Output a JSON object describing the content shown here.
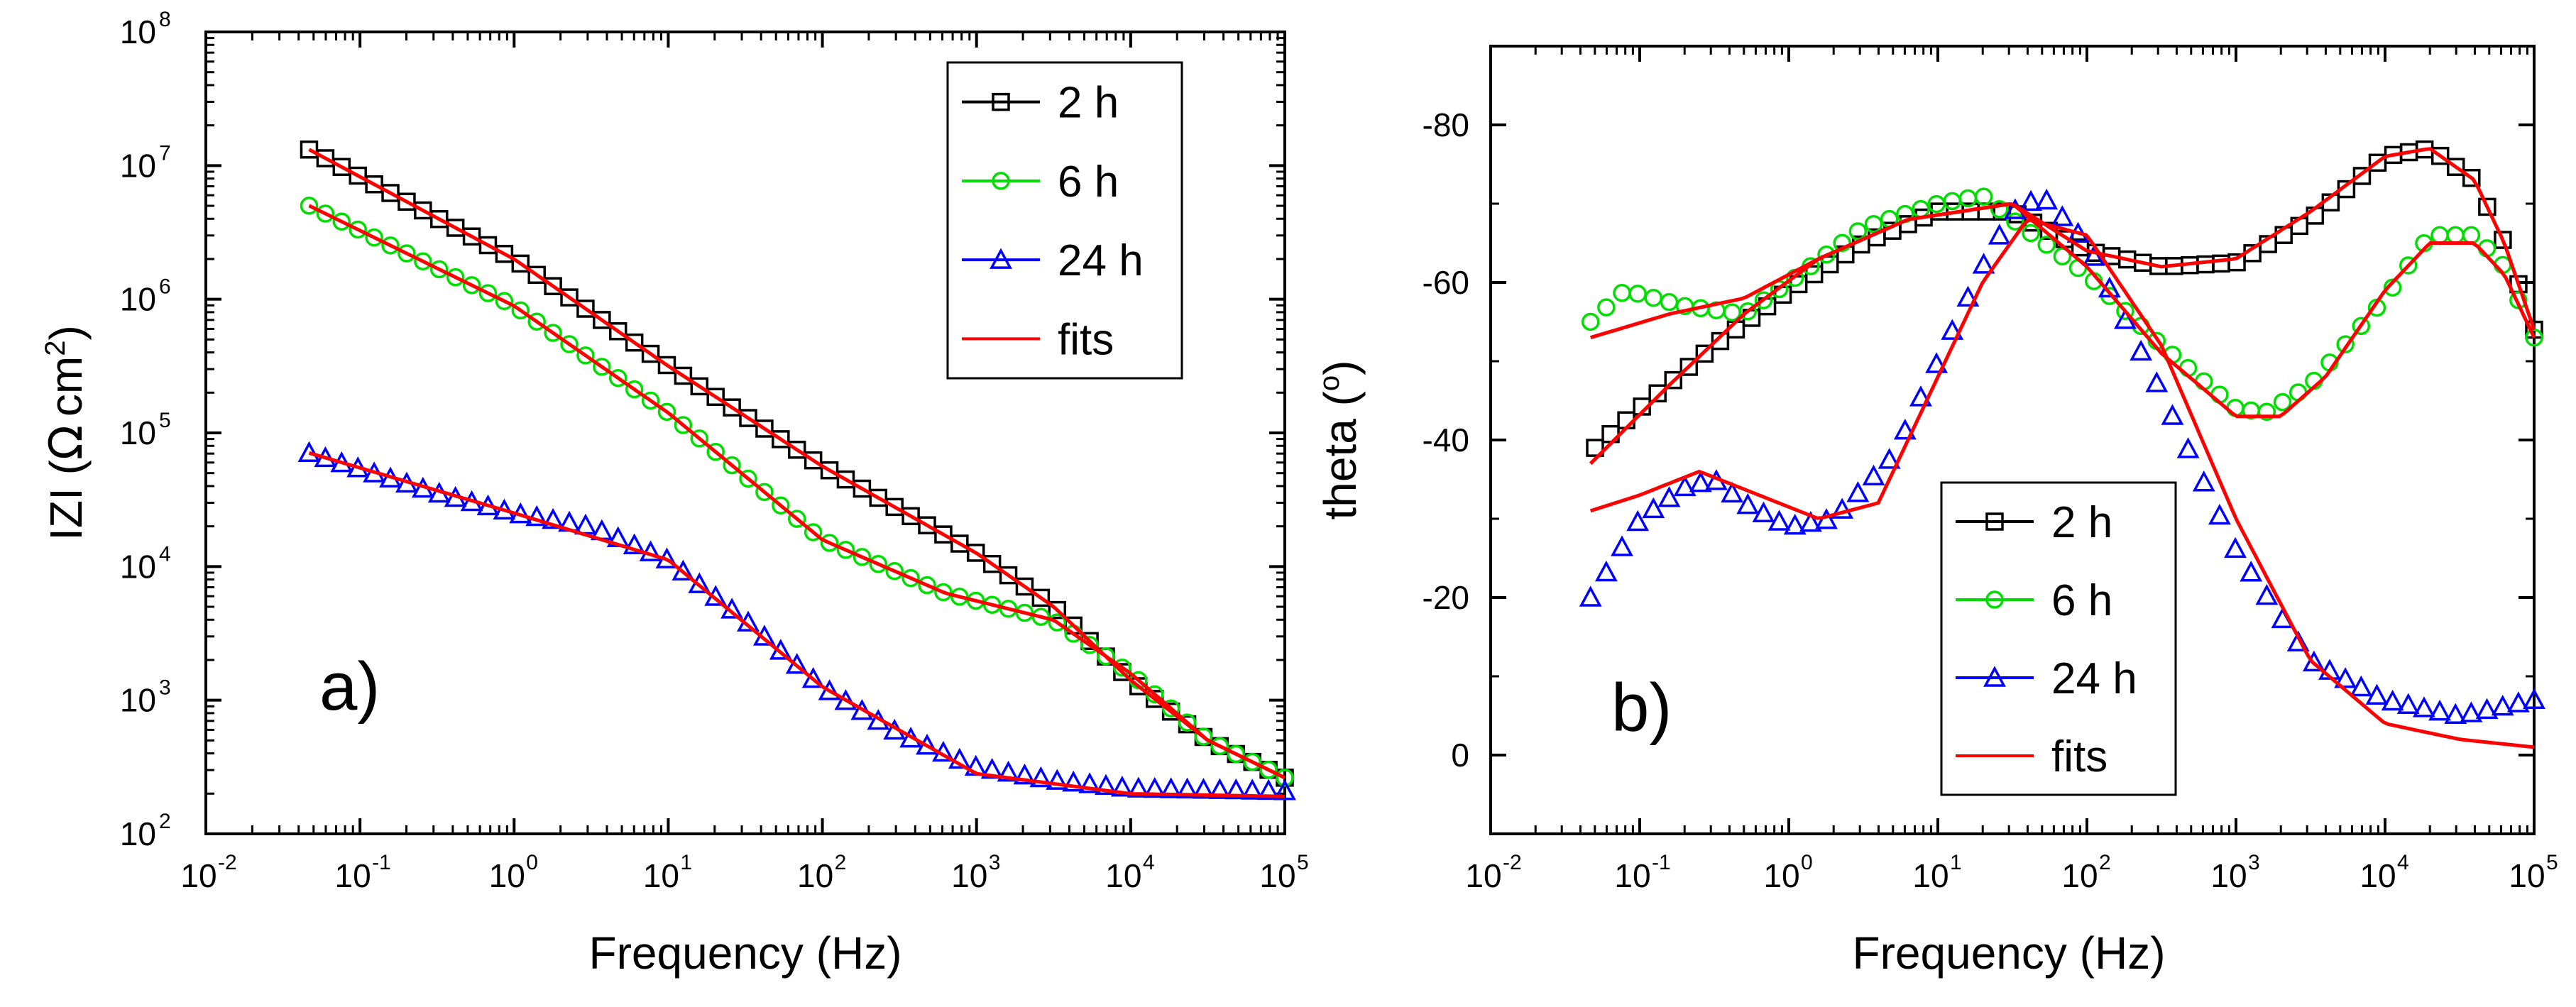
{
  "chart_data": [
    {
      "type": "scatter",
      "panel_label": "a)",
      "xlabel": "Frequency (Hz)",
      "ylabel_main": "IZI (",
      "ylabel_omega": "Ω",
      "ylabel_unit": "cm",
      "ylabel_exp": "2",
      "ylabel_close": ")",
      "xscale": "log",
      "yscale": "log",
      "xlim_exp": [
        -2,
        5
      ],
      "ylim_exp": [
        2,
        8
      ],
      "xticks": [
        {
          "base": "10",
          "exp": "-2",
          "e": -2
        },
        {
          "base": "10",
          "exp": "-1",
          "e": -1
        },
        {
          "base": "10",
          "exp": "0",
          "e": 0
        },
        {
          "base": "10",
          "exp": "1",
          "e": 1
        },
        {
          "base": "10",
          "exp": "2",
          "e": 2
        },
        {
          "base": "10",
          "exp": "3",
          "e": 3
        },
        {
          "base": "10",
          "exp": "4",
          "e": 4
        },
        {
          "base": "10",
          "exp": "5",
          "e": 5
        }
      ],
      "yticks": [
        {
          "base": "10",
          "exp": "2",
          "e": 2
        },
        {
          "base": "10",
          "exp": "3",
          "e": 3
        },
        {
          "base": "10",
          "exp": "4",
          "e": 4
        },
        {
          "base": "10",
          "exp": "5",
          "e": 5
        },
        {
          "base": "10",
          "exp": "6",
          "e": 6
        },
        {
          "base": "10",
          "exp": "7",
          "e": 7
        },
        {
          "base": "10",
          "exp": "8",
          "e": 8
        }
      ],
      "legend_position": "top-right",
      "series": [
        {
          "name": "2 h",
          "color": "#000000",
          "marker": "square",
          "points": [
            [
              -1.33,
              7.12
            ],
            [
              0,
              6.3
            ],
            [
              1,
              5.5
            ],
            [
              2,
              4.75
            ],
            [
              3,
              4.1
            ],
            [
              3.5,
              3.7
            ],
            [
              4,
              3.15
            ],
            [
              4.5,
              2.7
            ],
            [
              5,
              2.42
            ]
          ]
        },
        {
          "name": "6 h",
          "color": "#00dd00",
          "marker": "circle",
          "points": [
            [
              -1.33,
              6.7
            ],
            [
              0,
              5.95
            ],
            [
              1,
              5.15
            ],
            [
              2,
              4.2
            ],
            [
              2.8,
              3.8
            ],
            [
              3.5,
              3.6
            ],
            [
              4,
              3.2
            ],
            [
              4.5,
              2.7
            ],
            [
              5,
              2.42
            ]
          ]
        },
        {
          "name": "24 h",
          "color": "#0000ff",
          "marker": "triangle",
          "points": [
            [
              -1.33,
              4.85
            ],
            [
              -0.5,
              4.55
            ],
            [
              0,
              4.4
            ],
            [
              0.5,
              4.3
            ],
            [
              1,
              4.05
            ],
            [
              1.5,
              3.6
            ],
            [
              2,
              3.1
            ],
            [
              2.5,
              2.75
            ],
            [
              3,
              2.5
            ],
            [
              3.5,
              2.4
            ],
            [
              4,
              2.34
            ],
            [
              5,
              2.32
            ]
          ]
        },
        {
          "name": "fits",
          "color": "#ff0000",
          "marker": "line",
          "points": [
            [
              -1.33,
              4.85
            ],
            [
              0,
              4.4
            ],
            [
              1,
              4.05
            ],
            [
              2,
              3.1
            ],
            [
              3,
              2.45
            ],
            [
              4,
              2.3
            ],
            [
              5,
              2.28
            ]
          ]
        }
      ],
      "fit_curves": [
        [
          [
            -1.33,
            7.12
          ],
          [
            0,
            6.3
          ],
          [
            1,
            5.5
          ],
          [
            2,
            4.75
          ],
          [
            3,
            4.1
          ],
          [
            3.5,
            3.7
          ],
          [
            4,
            3.15
          ],
          [
            4.5,
            2.7
          ],
          [
            5,
            2.42
          ]
        ],
        [
          [
            -1.33,
            6.7
          ],
          [
            0,
            5.95
          ],
          [
            1,
            5.15
          ],
          [
            2,
            4.2
          ],
          [
            2.8,
            3.8
          ],
          [
            3.5,
            3.6
          ],
          [
            4,
            3.2
          ],
          [
            4.5,
            2.7
          ],
          [
            5,
            2.42
          ]
        ]
      ],
      "legend": [
        "2 h",
        "6 h",
        "24 h",
        "fits"
      ]
    },
    {
      "type": "scatter",
      "panel_label": "b)",
      "xlabel": "Frequency (Hz)",
      "ylabel_main": "theta (",
      "ylabel_deg": "o",
      "ylabel_close": ")",
      "xscale": "log",
      "yscale": "linear",
      "xlim_exp": [
        -2,
        5
      ],
      "ylim": [
        10,
        -90
      ],
      "xticks": [
        {
          "base": "10",
          "exp": "-2",
          "e": -2
        },
        {
          "base": "10",
          "exp": "-1",
          "e": -1
        },
        {
          "base": "10",
          "exp": "0",
          "e": 0
        },
        {
          "base": "10",
          "exp": "1",
          "e": 1
        },
        {
          "base": "10",
          "exp": "2",
          "e": 2
        },
        {
          "base": "10",
          "exp": "3",
          "e": 3
        },
        {
          "base": "10",
          "exp": "4",
          "e": 4
        },
        {
          "base": "10",
          "exp": "5",
          "e": 5
        }
      ],
      "yticks": [
        {
          "label": "-80",
          "v": -80
        },
        {
          "label": "-60",
          "v": -60
        },
        {
          "label": "-40",
          "v": -40
        },
        {
          "label": "-20",
          "v": -20
        },
        {
          "label": "0",
          "v": 0
        }
      ],
      "legend_position": "bottom-right",
      "series": [
        {
          "name": "2 h",
          "color": "#000000",
          "marker": "square",
          "points": [
            [
              -1.3,
              -39
            ],
            [
              -1,
              -44
            ],
            [
              -0.5,
              -52
            ],
            [
              0,
              -59
            ],
            [
              0.5,
              -65
            ],
            [
              1,
              -69
            ],
            [
              1.5,
              -69
            ],
            [
              2,
              -64
            ],
            [
              2.5,
              -62
            ],
            [
              3,
              -62.5
            ],
            [
              3.5,
              -68
            ],
            [
              4,
              -76
            ],
            [
              4.3,
              -77
            ],
            [
              4.6,
              -73
            ],
            [
              4.8,
              -65
            ],
            [
              5,
              -54
            ]
          ]
        },
        {
          "name": "6 h",
          "color": "#00dd00",
          "marker": "circle",
          "points": [
            [
              -1.33,
              -55
            ],
            [
              -1.1,
              -59
            ],
            [
              -0.7,
              -57
            ],
            [
              -0.3,
              -56
            ],
            [
              0,
              -60
            ],
            [
              0.5,
              -67
            ],
            [
              1,
              -70
            ],
            [
              1.3,
              -71
            ],
            [
              1.5,
              -68
            ],
            [
              2,
              -61
            ],
            [
              2.5,
              -52
            ],
            [
              3,
              -44
            ],
            [
              3.2,
              -43.5
            ],
            [
              3.5,
              -47
            ],
            [
              4,
              -58
            ],
            [
              4.3,
              -66
            ],
            [
              4.6,
              -66
            ],
            [
              4.8,
              -62
            ],
            [
              5,
              -53
            ]
          ]
        },
        {
          "name": "24 h",
          "color": "#0000ff",
          "marker": "triangle",
          "points": [
            [
              -1.33,
              -20
            ],
            [
              -1,
              -30
            ],
            [
              -0.7,
              -34
            ],
            [
              -0.5,
              -35
            ],
            [
              -0.3,
              -32
            ],
            [
              0,
              -29
            ],
            [
              0.3,
              -30
            ],
            [
              0.7,
              -38
            ],
            [
              1,
              -50
            ],
            [
              1.3,
              -62
            ],
            [
              1.5,
              -69
            ],
            [
              1.7,
              -71
            ],
            [
              2,
              -65
            ],
            [
              2.5,
              -46
            ],
            [
              3,
              -26
            ],
            [
              3.5,
              -12
            ],
            [
              4,
              -7
            ],
            [
              4.5,
              -5
            ],
            [
              5,
              -7
            ]
          ]
        },
        {
          "name": "fits",
          "color": "#ff0000",
          "marker": "line",
          "points": [
            [
              -1.33,
              -31
            ],
            [
              -1,
              -33
            ],
            [
              -0.6,
              -36
            ],
            [
              -0.2,
              -33
            ],
            [
              0.2,
              -30
            ],
            [
              0.6,
              -32
            ],
            [
              1,
              -48
            ],
            [
              1.3,
              -60
            ],
            [
              1.6,
              -68
            ],
            [
              2,
              -66
            ],
            [
              2.5,
              -52
            ],
            [
              3,
              -30
            ],
            [
              3.5,
              -12
            ],
            [
              4,
              -4
            ],
            [
              4.5,
              -2
            ],
            [
              5,
              -1
            ]
          ]
        }
      ],
      "fit_curves": [
        [
          [
            -1.33,
            -37
          ],
          [
            -0.8,
            -47
          ],
          [
            -0.3,
            -56
          ],
          [
            0.2,
            -63
          ],
          [
            0.8,
            -68
          ],
          [
            1.5,
            -70
          ],
          [
            2,
            -64
          ],
          [
            2.5,
            -62
          ],
          [
            3,
            -63
          ],
          [
            3.5,
            -69
          ],
          [
            4,
            -76
          ],
          [
            4.3,
            -77
          ],
          [
            4.6,
            -73
          ],
          [
            4.8,
            -65
          ],
          [
            5,
            -54
          ]
        ],
        [
          [
            -1.33,
            -53
          ],
          [
            -0.8,
            -56
          ],
          [
            -0.3,
            -58
          ],
          [
            0.2,
            -63
          ],
          [
            0.8,
            -68
          ],
          [
            1.5,
            -70
          ],
          [
            2,
            -62
          ],
          [
            2.5,
            -51
          ],
          [
            3,
            -43
          ],
          [
            3.3,
            -43
          ],
          [
            3.6,
            -48
          ],
          [
            4,
            -59
          ],
          [
            4.3,
            -65
          ],
          [
            4.6,
            -65
          ],
          [
            4.8,
            -61
          ],
          [
            5,
            -53
          ]
        ]
      ],
      "legend": [
        "2 h",
        "6 h",
        "24 h",
        "fits"
      ]
    }
  ]
}
